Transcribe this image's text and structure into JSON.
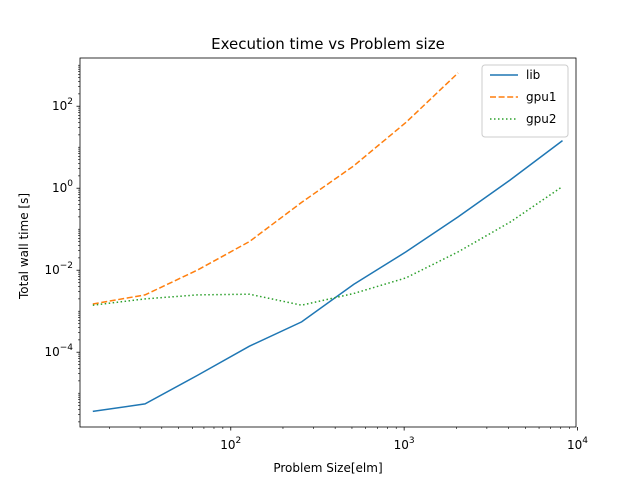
{
  "chart_data": {
    "type": "line",
    "title": "Execution time vs Problem size",
    "xlabel": "Problem Size[elm]",
    "ylabel": "Total wall time [s]",
    "xscale": "log",
    "yscale": "log",
    "xlim": [
      13.5,
      9800
    ],
    "ylim": [
      1.5e-06,
      1500
    ],
    "xticks": [
      {
        "value": 100,
        "base": "10",
        "exp": "2"
      },
      {
        "value": 1000,
        "base": "10",
        "exp": "3"
      },
      {
        "value": 10000,
        "base": "10",
        "exp": "4"
      }
    ],
    "yticks": [
      {
        "value": 0.0001,
        "base": "10",
        "exp": "−4"
      },
      {
        "value": 0.01,
        "base": "10",
        "exp": "−2"
      },
      {
        "value": 1,
        "base": "10",
        "exp": "0"
      },
      {
        "value": 100,
        "base": "10",
        "exp": "2"
      }
    ],
    "grid": false,
    "legend_position": "top-right",
    "series": [
      {
        "name": "lib",
        "color": "#1f77b4",
        "style": "solid",
        "x": [
          16,
          32,
          64,
          128,
          256,
          512,
          1024,
          2048,
          4096,
          8192
        ],
        "y": [
          3.6e-06,
          5.5e-06,
          2.7e-05,
          0.00014,
          0.00055,
          0.0045,
          0.028,
          0.2,
          1.6,
          14.5
        ]
      },
      {
        "name": "gpu1",
        "color": "#ff7f0e",
        "style": "dashed",
        "x": [
          16,
          32,
          64,
          128,
          256,
          512,
          1024,
          2048
        ],
        "y": [
          0.0015,
          0.0025,
          0.01,
          0.05,
          0.45,
          3.5,
          40,
          650
        ]
      },
      {
        "name": "gpu2",
        "color": "#2ca02c",
        "style": "dotted",
        "x": [
          16,
          32,
          64,
          128,
          256,
          512,
          1024,
          2048,
          4096,
          8192
        ],
        "y": [
          0.0014,
          0.002,
          0.0025,
          0.0026,
          0.0014,
          0.0027,
          0.0065,
          0.028,
          0.15,
          1.1
        ]
      }
    ]
  }
}
